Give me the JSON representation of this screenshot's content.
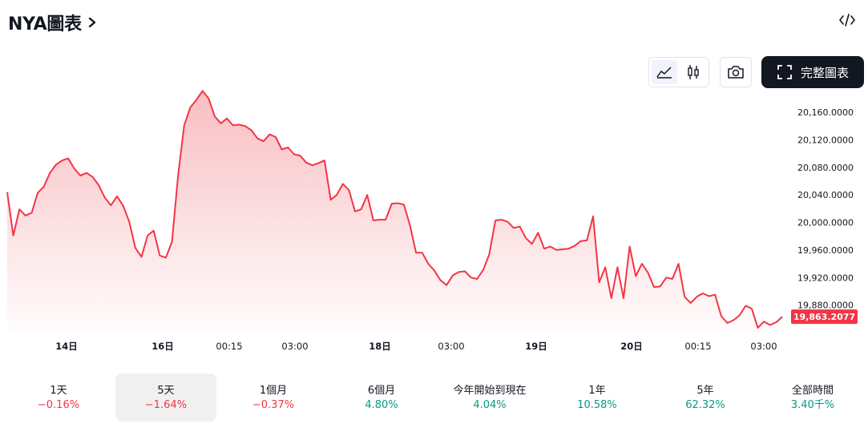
{
  "header": {
    "title": "NYA圖表"
  },
  "toolbar": {
    "fullchart_label": "完整圖表"
  },
  "icons": {
    "title_chevron": "chevron-right-icon",
    "embed": "code-embed-icon",
    "area_chart": "area-chart-icon",
    "candles": "candlestick-icon",
    "camera": "camera-icon",
    "fullscreen": "fullscreen-icon"
  },
  "colors": {
    "line": "#f23645",
    "fill_top": "#f7a8ae",
    "price_tag": "#f23645",
    "negative": "#f23645",
    "positive": "#089981"
  },
  "chart_data": {
    "type": "area",
    "y_ticks": [
      "20,160.0000",
      "20,120.0000",
      "20,080.0000",
      "20,040.0000",
      "20,000.0000",
      "19,960.0000",
      "19,920.0000",
      "19,880.0000"
    ],
    "x_ticks": [
      {
        "label": "14日",
        "bold": true
      },
      {
        "label": "16日",
        "bold": true
      },
      {
        "label": "00:15",
        "bold": false
      },
      {
        "label": "03:00",
        "bold": false
      },
      {
        "label": "18日",
        "bold": true
      },
      {
        "label": "03:00",
        "bold": false
      },
      {
        "label": "19日",
        "bold": true
      },
      {
        "label": "20日",
        "bold": true
      },
      {
        "label": "00:15",
        "bold": false
      },
      {
        "label": "03:00",
        "bold": false
      }
    ],
    "ylim": [
      19840,
      20195
    ],
    "last_price": "19,863.2077",
    "values": [
      20044,
      19981,
      20019,
      20010,
      20014,
      20043,
      20052,
      20072,
      20084,
      20090,
      20093,
      20078,
      20068,
      20072,
      20066,
      20054,
      20036,
      20025,
      20038,
      20024,
      20001,
      19963,
      19950,
      19981,
      19988,
      19952,
      19949,
      19972,
      20068,
      20141,
      20167,
      20178,
      20191,
      20180,
      20154,
      20144,
      20151,
      20141,
      20142,
      20140,
      20134,
      20122,
      20118,
      20128,
      20124,
      20106,
      20109,
      20099,
      20097,
      20087,
      20083,
      20086,
      20090,
      20033,
      20040,
      20056,
      20047,
      20016,
      20019,
      20040,
      20003,
      20004,
      20004,
      20027,
      20028,
      20026,
      19996,
      19956,
      19956,
      19940,
      19930,
      19916,
      19909,
      19923,
      19928,
      19929,
      19920,
      19918,
      19931,
      19954,
      20003,
      20004,
      20001,
      19992,
      19994,
      19977,
      19969,
      19985,
      19962,
      19965,
      19960,
      19961,
      19962,
      19966,
      19973,
      19974,
      20009,
      19913,
      19935,
      19890,
      19935,
      19890,
      19965,
      19922,
      19940,
      19927,
      19906,
      19907,
      19920,
      19918,
      19940,
      19892,
      19883,
      19892,
      19897,
      19893,
      19895,
      19864,
      19854,
      19858,
      19865,
      19879,
      19875,
      19847,
      19856,
      19851,
      19855,
      19863
    ]
  },
  "periods": [
    {
      "label": "1天",
      "change": "−0.16%",
      "dir": "neg"
    },
    {
      "label": "5天",
      "change": "−1.64%",
      "dir": "neg"
    },
    {
      "label": "1個月",
      "change": "−0.37%",
      "dir": "neg"
    },
    {
      "label": "6個月",
      "change": "4.80%",
      "dir": "pos"
    },
    {
      "label": "今年開始到現在",
      "change": "4.04%",
      "dir": "pos"
    },
    {
      "label": "1年",
      "change": "10.58%",
      "dir": "pos"
    },
    {
      "label": "5年",
      "change": "62.32%",
      "dir": "pos"
    },
    {
      "label": "全部時間",
      "change": "3.40千%",
      "dir": "pos"
    }
  ]
}
